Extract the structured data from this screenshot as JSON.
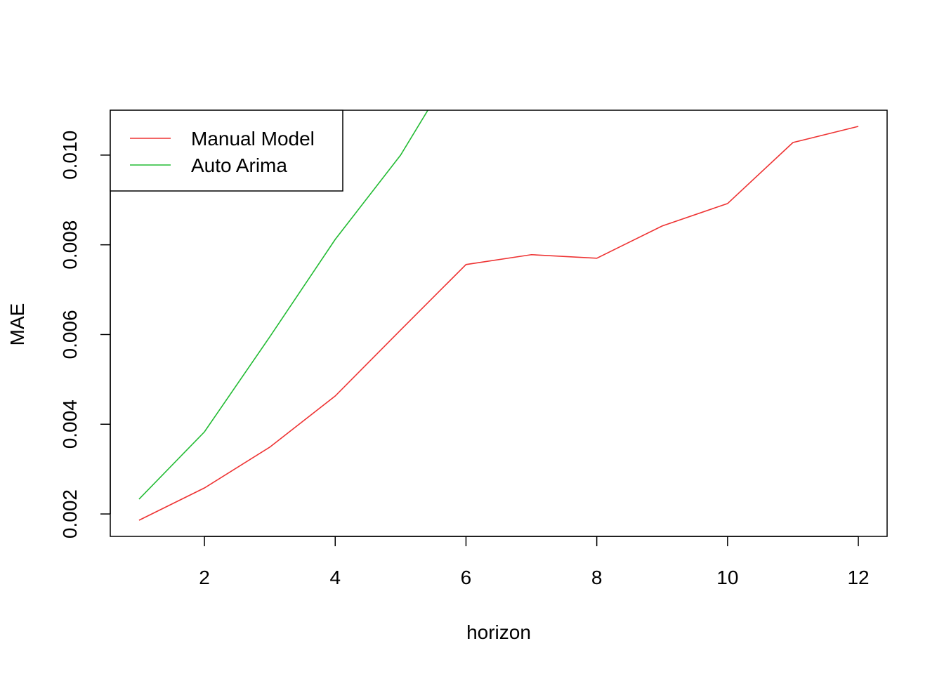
{
  "chart_data": {
    "type": "line",
    "x_label": "horizon",
    "y_label": "MAE",
    "x": [
      1,
      2,
      3,
      4,
      5,
      6,
      7,
      8,
      9,
      10,
      11,
      12
    ],
    "series": [
      {
        "name": "Manual Model",
        "color": "#ee3333",
        "values": [
          0.00186,
          0.00258,
          0.00349,
          0.00463,
          0.0061,
          0.00756,
          0.00778,
          0.0077,
          0.00842,
          0.00892,
          0.01028,
          0.01064
        ]
      },
      {
        "name": "Auto Arima",
        "color": "#22bb33",
        "values": [
          0.00233,
          0.00383,
          0.00595,
          0.00812,
          0.01,
          0.0124,
          null,
          null,
          null,
          null,
          null,
          null
        ]
      }
    ],
    "xlim": [
      0.56,
      12.44
    ],
    "ylim": [
      0.0015,
      0.011
    ],
    "xticks": [
      2,
      4,
      6,
      8,
      10,
      12
    ],
    "yticks": [
      0.002,
      0.004,
      0.006,
      0.008,
      {
        "value": 0.01,
        "label": "0.010"
      }
    ],
    "legend": "top-left",
    "grid": false
  }
}
